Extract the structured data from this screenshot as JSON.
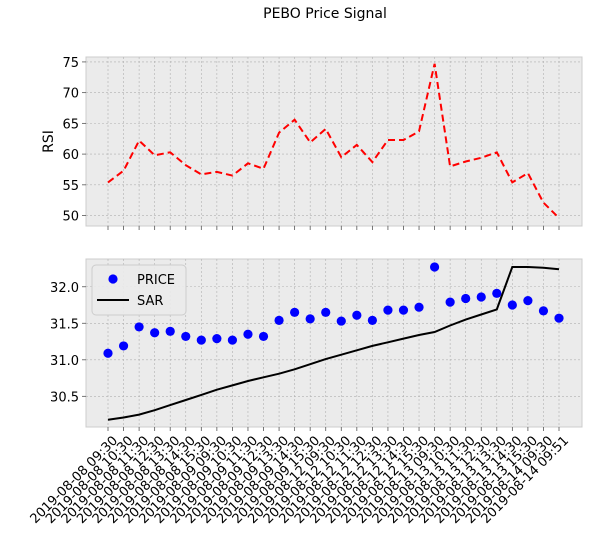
{
  "chart_data": {
    "title": "PEBO Price Signal",
    "x": [
      "2019-08-08 09:30",
      "2019-08-08 10:30",
      "2019-08-08 11:30",
      "2019-08-08 12:30",
      "2019-08-08 13:30",
      "2019-08-08 14:30",
      "2019-08-08 15:30",
      "2019-08-09 09:30",
      "2019-08-09 10:30",
      "2019-08-09 11:30",
      "2019-08-09 12:30",
      "2019-08-09 13:30",
      "2019-08-09 14:30",
      "2019-08-09 15:30",
      "2019-08-12 09:30",
      "2019-08-12 10:30",
      "2019-08-12 11:30",
      "2019-08-12 12:30",
      "2019-08-12 13:30",
      "2019-08-12 14:30",
      "2019-08-12 15:30",
      "2019-08-13 09:30",
      "2019-08-13 10:30",
      "2019-08-13 11:30",
      "2019-08-13 12:30",
      "2019-08-13 13:30",
      "2019-08-13 14:30",
      "2019-08-13 15:30",
      "2019-08-14 09:30",
      "2019-08-14 09:51"
    ],
    "panels": [
      {
        "type": "line",
        "ylabel": "RSI",
        "ylim": [
          48.3,
          75.8
        ],
        "yticks": [
          "50",
          "55",
          "60",
          "65",
          "70",
          "75"
        ],
        "grid": true,
        "series": [
          {
            "name": "",
            "style": "dashed",
            "color": "#ff0000",
            "values": [
              55.4,
              57.3,
              62.2,
              59.8,
              60.3,
              58.2,
              56.7,
              57.1,
              56.5,
              58.5,
              57.6,
              63.5,
              65.6,
              61.9,
              64.1,
              59.5,
              61.5,
              58.7,
              62.3,
              62.3,
              63.7,
              74.7,
              58.0,
              58.8,
              59.4,
              60.3,
              55.4,
              56.9,
              52.1,
              49.6
            ]
          }
        ]
      },
      {
        "type": "scatter+line",
        "ylabel": "",
        "ylim": [
          30.08,
          32.38
        ],
        "yticks": [
          "30.5",
          "31.0",
          "31.5",
          "32.0"
        ],
        "grid": true,
        "legend_position": "top-left",
        "series": [
          {
            "name": "PRICE",
            "style": "markers",
            "color": "#0000ff",
            "values": [
              31.09,
              31.19,
              31.45,
              31.37,
              31.39,
              31.32,
              31.27,
              31.29,
              31.27,
              31.35,
              31.32,
              31.54,
              31.65,
              31.56,
              31.65,
              31.53,
              31.61,
              31.54,
              31.68,
              31.68,
              31.72,
              32.27,
              31.79,
              31.84,
              31.86,
              31.91,
              31.75,
              31.81,
              31.67,
              31.57
            ]
          },
          {
            "name": "SAR",
            "style": "solid",
            "color": "#000000",
            "values": [
              30.18,
              30.21,
              30.25,
              30.31,
              30.38,
              30.45,
              30.52,
              30.59,
              30.65,
              30.71,
              30.76,
              30.81,
              30.87,
              30.94,
              31.01,
              31.07,
              31.13,
              31.19,
              31.24,
              31.29,
              31.34,
              31.38,
              31.47,
              31.55,
              31.62,
              31.69,
              32.27,
              32.27,
              32.26,
              32.24
            ]
          }
        ]
      }
    ]
  }
}
